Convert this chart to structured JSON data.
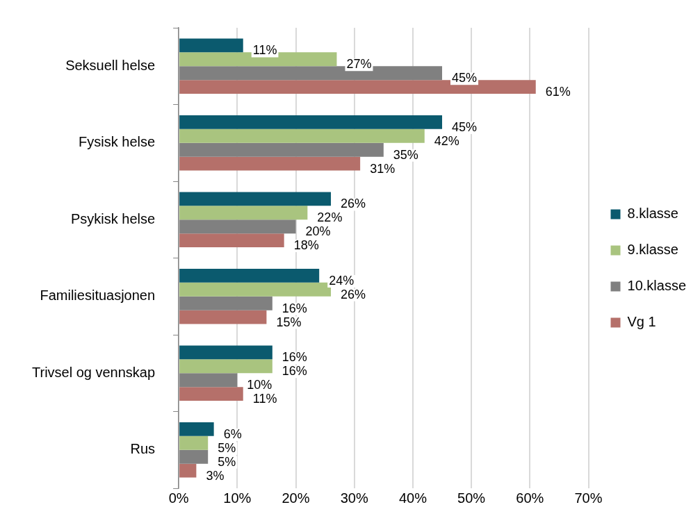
{
  "chart_data": {
    "type": "bar",
    "orientation": "horizontal",
    "categories": [
      "Seksuell helse",
      "Fysisk helse",
      "Psykisk helse",
      "Familiesituasjonen",
      "Trivsel og vennskap",
      "Rus"
    ],
    "series": [
      {
        "name": "8.klasse",
        "color": "#0b5a6e",
        "values": [
          11,
          45,
          26,
          24,
          16,
          6
        ],
        "value_labels": [
          "11%",
          "45%",
          "26%",
          "24%",
          "16%",
          "6%"
        ]
      },
      {
        "name": "9.klasse",
        "color": "#a9c47f",
        "values": [
          27,
          42,
          22,
          26,
          16,
          5
        ],
        "value_labels": [
          "27%",
          "42%",
          "22%",
          "26%",
          "16%",
          "5%"
        ]
      },
      {
        "name": "10.klasse",
        "color": "#808080",
        "values": [
          45,
          35,
          20,
          16,
          10,
          5
        ],
        "value_labels": [
          "45%",
          "35%",
          "20%",
          "16%",
          "10%",
          "5%"
        ]
      },
      {
        "name": "Vg 1",
        "color": "#b5706a",
        "values": [
          61,
          31,
          18,
          15,
          11,
          3
        ],
        "value_labels": [
          "61%",
          "31%",
          "18%",
          "15%",
          "11%",
          "3%"
        ]
      }
    ],
    "xlim": [
      0,
      70
    ],
    "xticks": [
      {
        "value": 0,
        "label": "0%"
      },
      {
        "value": 10,
        "label": "10%"
      },
      {
        "value": 20,
        "label": "20%"
      },
      {
        "value": 30,
        "label": "30%"
      },
      {
        "value": 40,
        "label": "40%"
      },
      {
        "value": 50,
        "label": "50%"
      },
      {
        "value": 60,
        "label": "60%"
      },
      {
        "value": 70,
        "label": "70%"
      }
    ],
    "grid": "x",
    "legend": "right"
  }
}
